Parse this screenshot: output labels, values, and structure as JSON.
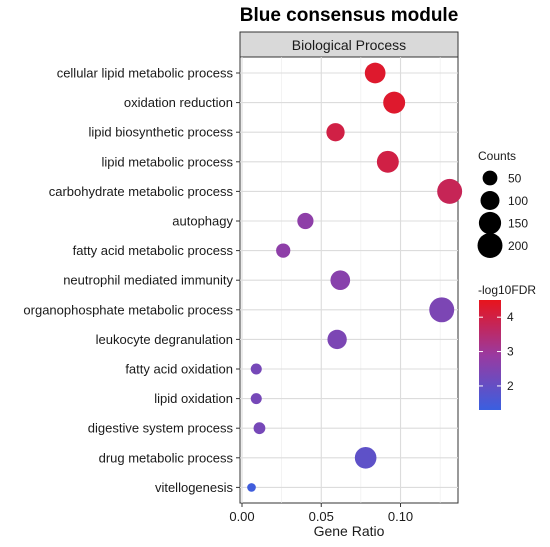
{
  "chart_data": {
    "type": "scatter",
    "title": "Blue consensus module",
    "facet_label": "Biological Process",
    "xlabel": "Gene Ratio",
    "ylabel": "",
    "xlim": [
      0,
      0.135
    ],
    "x_ticks": [
      "0.00",
      "0.05",
      "0.10"
    ],
    "x_tick_values": [
      0,
      0.05,
      0.1
    ],
    "grid": true,
    "legend_position": "right",
    "size_legend": {
      "title": "Counts",
      "values": [
        50,
        100,
        150,
        200
      ],
      "labels": [
        "50",
        "100",
        "150",
        "200"
      ]
    },
    "color_legend": {
      "title": "-log10FDR",
      "range": [
        1.3,
        4.5
      ],
      "ticks": [
        2,
        3,
        4
      ],
      "tick_labels": [
        "2",
        "3",
        "4"
      ],
      "low_color": "#3a5fe0",
      "high_color": "#e8141c"
    },
    "terms": [
      {
        "term": "cellular lipid metabolic process",
        "gene_ratio": 0.084,
        "counts": 125,
        "log10FDR": 4.3
      },
      {
        "term": "oxidation reduction",
        "gene_ratio": 0.096,
        "counts": 145,
        "log10FDR": 4.3
      },
      {
        "term": "lipid biosynthetic process",
        "gene_ratio": 0.059,
        "counts": 90,
        "log10FDR": 4.0
      },
      {
        "term": "lipid metabolic process",
        "gene_ratio": 0.092,
        "counts": 145,
        "log10FDR": 4.0
      },
      {
        "term": "carbohydrate metabolic process",
        "gene_ratio": 0.131,
        "counts": 200,
        "log10FDR": 3.8
      },
      {
        "term": "autophagy",
        "gene_ratio": 0.04,
        "counts": 65,
        "log10FDR": 2.7
      },
      {
        "term": "fatty acid metabolic process",
        "gene_ratio": 0.026,
        "counts": 45,
        "log10FDR": 2.7
      },
      {
        "term": "neutrophil mediated immunity",
        "gene_ratio": 0.062,
        "counts": 110,
        "log10FDR": 2.6
      },
      {
        "term": "organophosphate metabolic process",
        "gene_ratio": 0.126,
        "counts": 200,
        "log10FDR": 2.4
      },
      {
        "term": "leukocyte degranulation",
        "gene_ratio": 0.06,
        "counts": 105,
        "log10FDR": 2.4
      },
      {
        "term": "fatty acid oxidation",
        "gene_ratio": 0.009,
        "counts": 20,
        "log10FDR": 2.3
      },
      {
        "term": "lipid oxidation",
        "gene_ratio": 0.009,
        "counts": 20,
        "log10FDR": 2.3
      },
      {
        "term": "digestive system process",
        "gene_ratio": 0.011,
        "counts": 25,
        "log10FDR": 2.3
      },
      {
        "term": "drug metabolic process",
        "gene_ratio": 0.078,
        "counts": 140,
        "log10FDR": 1.9
      },
      {
        "term": "vitellogenesis",
        "gene_ratio": 0.006,
        "counts": 8,
        "log10FDR": 1.4
      }
    ]
  }
}
